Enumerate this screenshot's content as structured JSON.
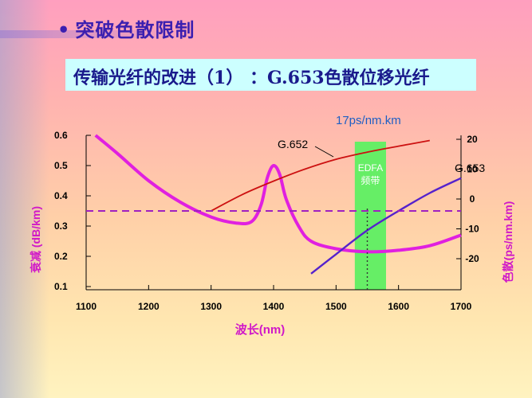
{
  "slide": {
    "heading": "突破色散限制",
    "subtitle": "传输光纤的改进（1） ：G.653色散位移光纤"
  },
  "chart_data": {
    "type": "line",
    "xlabel": "波长(nm)",
    "ylabel_left": "衰减 (dB/km)",
    "ylabel_right": "色散(ps/nm.km)",
    "xlim": [
      1100,
      1700
    ],
    "ylim_left": [
      0.1,
      0.6
    ],
    "ylim_right": [
      -20,
      20
    ],
    "x_ticks": [
      "1100",
      "1200",
      "1300",
      "1400",
      "1500",
      "1600",
      "1700"
    ],
    "y_left_ticks": [
      "0.1",
      "0.2",
      "0.3",
      "0.4",
      "0.5",
      "0.6"
    ],
    "y_right_ticks": [
      "-20",
      "-10",
      "0",
      "10",
      "20"
    ],
    "series": [
      {
        "name": "衰减",
        "axis": "left",
        "color": "#e020e0",
        "x": [
          1115,
          1150,
          1200,
          1250,
          1300,
          1340,
          1365,
          1380,
          1390,
          1400,
          1410,
          1420,
          1440,
          1460,
          1500,
          1550,
          1600,
          1650,
          1700
        ],
        "y": [
          0.6,
          0.54,
          0.45,
          0.38,
          0.33,
          0.31,
          0.315,
          0.37,
          0.46,
          0.5,
          0.47,
          0.39,
          0.3,
          0.25,
          0.225,
          0.215,
          0.22,
          0.235,
          0.27
        ]
      },
      {
        "name": "G.652",
        "axis": "right",
        "color": "#cc1111",
        "x": [
          1300,
          1350,
          1400,
          1450,
          1500,
          1550,
          1600,
          1650
        ],
        "y": [
          -4,
          1.5,
          6,
          10,
          13.3,
          15.7,
          17.7,
          19.6
        ]
      },
      {
        "name": "G.653",
        "axis": "right",
        "color": "#5522cc",
        "x": [
          1460,
          1500,
          1550,
          1600,
          1650,
          1700
        ],
        "y": [
          -25,
          -18.5,
          -10.5,
          -4,
          2,
          7
        ]
      }
    ],
    "dashed_line": {
      "axis": "left",
      "y": 0.35,
      "color": "#a020c0"
    },
    "band": {
      "label_line1": "EDFA",
      "label_line2": "频带",
      "x_start": 1530,
      "x_end": 1580,
      "color": "#66ee66"
    },
    "dotted_line": {
      "x": 1550
    },
    "annotations": {
      "g652": "G.652",
      "g653": "G.653",
      "slope": "17ps/nm.km"
    }
  }
}
